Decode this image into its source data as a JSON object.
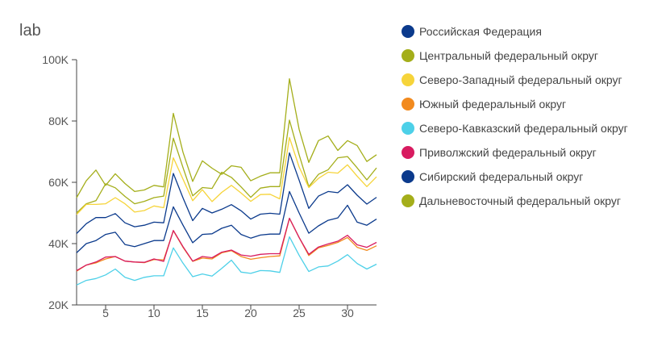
{
  "chart_data": {
    "type": "line",
    "title": "lab",
    "xlabel": "",
    "ylabel": "",
    "xlim": [
      2,
      33
    ],
    "ylim": [
      20000,
      100000
    ],
    "xticks": [
      5,
      10,
      15,
      20,
      25,
      30
    ],
    "xtick_labels": [
      "5",
      "10",
      "15",
      "20",
      "25",
      "30"
    ],
    "yticks": [
      20000,
      40000,
      60000,
      80000,
      100000
    ],
    "ytick_labels": [
      "20K",
      "40K",
      "60K",
      "80K",
      "100K"
    ],
    "grid": false,
    "legend_position": "right",
    "x": [
      2,
      3,
      4,
      5,
      6,
      7,
      8,
      9,
      10,
      11,
      12,
      13,
      14,
      15,
      16,
      17,
      18,
      19,
      20,
      21,
      22,
      23,
      24,
      25,
      26,
      27,
      28,
      29,
      30,
      31,
      32,
      33
    ],
    "series": [
      {
        "name": "Российская Федерация",
        "color": "#0b3a8c",
        "values": [
          37000,
          40000,
          41000,
          43000,
          43700,
          39700,
          39000,
          40000,
          41000,
          41000,
          52000,
          46000,
          40300,
          43000,
          43200,
          45000,
          46000,
          43000,
          41800,
          42800,
          43100,
          43100,
          57000,
          50000,
          43400,
          45800,
          47600,
          48400,
          52500,
          47000,
          46000,
          48000
        ]
      },
      {
        "name": "Центральный федеральный округ",
        "color": "#a4ae1a",
        "values": [
          50000,
          53000,
          54000,
          59500,
          58200,
          55400,
          53000,
          53800,
          55000,
          55500,
          74400,
          64800,
          55600,
          58300,
          58000,
          63300,
          61600,
          58500,
          55100,
          58100,
          58600,
          58600,
          80300,
          69000,
          58600,
          62600,
          64100,
          68000,
          68400,
          64700,
          60800,
          64700
        ]
      },
      {
        "name": "Северо-Западный федеральный округ",
        "color": "#f6d43a",
        "values": [
          49500,
          52800,
          52800,
          53000,
          55000,
          53000,
          50300,
          50800,
          52300,
          51700,
          68000,
          61000,
          54000,
          57600,
          53700,
          56700,
          59000,
          56500,
          53800,
          56000,
          56100,
          54600,
          74600,
          65000,
          58300,
          61300,
          63300,
          63000,
          65700,
          62000,
          58600,
          61800
        ]
      },
      {
        "name": "Южный федеральный округ",
        "color": "#f28a1e",
        "values": [
          31000,
          33000,
          33700,
          35000,
          35800,
          34300,
          34000,
          33800,
          34800,
          34700,
          44200,
          38800,
          34200,
          35300,
          35000,
          37000,
          37700,
          35800,
          34900,
          35400,
          35800,
          36000,
          48200,
          42000,
          36100,
          38600,
          39400,
          40400,
          42000,
          38800,
          37800,
          39300
        ]
      },
      {
        "name": "Северо-Кавказский федеральный округ",
        "color": "#4dd0e8",
        "values": [
          26500,
          28000,
          28600,
          29800,
          31700,
          29000,
          28000,
          29000,
          29500,
          29500,
          38600,
          33600,
          29200,
          30100,
          29400,
          31900,
          34600,
          30700,
          30300,
          31200,
          31100,
          30600,
          42200,
          36200,
          30900,
          32400,
          32700,
          34300,
          36400,
          33500,
          31700,
          33300
        ]
      },
      {
        "name": "Приволжский федеральный округ",
        "color": "#d81b60",
        "values": [
          31200,
          33000,
          34000,
          35600,
          35800,
          34300,
          34000,
          33900,
          35000,
          34200,
          44300,
          39000,
          34300,
          35800,
          35400,
          37200,
          37900,
          36300,
          35900,
          36500,
          36700,
          36700,
          48300,
          42000,
          36500,
          38900,
          39900,
          40800,
          42700,
          39600,
          38800,
          40400
        ]
      },
      {
        "name": "Сибирский федеральный округ",
        "color": "#0b3a8c",
        "values": [
          43300,
          46500,
          48500,
          48500,
          49800,
          46800,
          45500,
          46000,
          47000,
          46800,
          62900,
          54900,
          47500,
          51500,
          50000,
          51200,
          52700,
          50700,
          48000,
          49600,
          49900,
          49600,
          69600,
          60700,
          51500,
          55500,
          57000,
          56600,
          59200,
          55800,
          52900,
          55100
        ]
      },
      {
        "name": "Дальневосточный федеральный округ",
        "color": "#a4ae1a",
        "values": [
          55000,
          60500,
          64000,
          59000,
          62800,
          59600,
          57000,
          57500,
          59000,
          58500,
          82500,
          69800,
          60300,
          67000,
          64600,
          62600,
          65400,
          64900,
          60500,
          62000,
          63100,
          63100,
          93800,
          77300,
          66500,
          73600,
          75100,
          70400,
          73600,
          72000,
          66800,
          69000
        ]
      }
    ]
  }
}
